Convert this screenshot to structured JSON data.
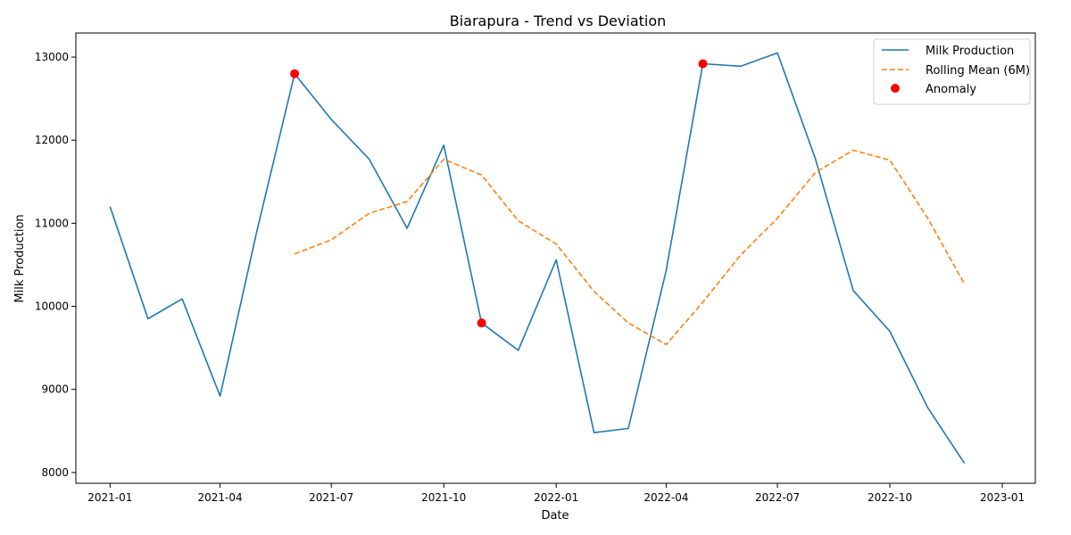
{
  "chart_data": {
    "type": "line",
    "title": "Biarapura - Trend vs Deviation",
    "xlabel": "Date",
    "ylabel": "Milk Production",
    "x": [
      "2021-01",
      "2021-02",
      "2021-03",
      "2021-04",
      "2021-05",
      "2021-06",
      "2021-07",
      "2021-08",
      "2021-09",
      "2021-10",
      "2021-11",
      "2021-12",
      "2022-01",
      "2022-02",
      "2022-03",
      "2022-04",
      "2022-05",
      "2022-06",
      "2022-07",
      "2022-08",
      "2022-09",
      "2022-10",
      "2022-11",
      "2022-12"
    ],
    "xlim": [
      "2020-12-04",
      "2023-01-28"
    ],
    "ylim": [
      7870,
      13290
    ],
    "x_ticks": [
      "2021-01",
      "2021-04",
      "2021-07",
      "2021-10",
      "2022-01",
      "2022-04",
      "2022-07",
      "2022-10",
      "2023-01"
    ],
    "y_ticks": [
      8000,
      9000,
      10000,
      11000,
      12000,
      13000
    ],
    "grid": false,
    "legend_position": "top-right",
    "series": [
      {
        "name": "Milk Production",
        "style": "solid",
        "color": "#1f77b4",
        "values": [
          11200,
          9850,
          10090,
          8920,
          10900,
          12800,
          12250,
          11770,
          10940,
          11940,
          9800,
          9470,
          10560,
          8480,
          8530,
          10430,
          12920,
          12890,
          13050,
          11780,
          10190,
          9700,
          8780,
          8110
        ]
      },
      {
        "name": "Rolling Mean (6M)",
        "style": "dashed",
        "color": "#ff7f0e",
        "values": [
          null,
          null,
          null,
          null,
          null,
          10630,
          10800,
          11120,
          11260,
          11770,
          11580,
          11030,
          10750,
          10180,
          9800,
          9540,
          10050,
          10620,
          11060,
          11610,
          11880,
          11760,
          11060,
          10270
        ]
      }
    ],
    "anomalies": {
      "name": "Anomaly",
      "color": "#ff0000",
      "points": [
        {
          "x": "2021-06",
          "y": 12800
        },
        {
          "x": "2021-11",
          "y": 9800
        },
        {
          "x": "2022-05",
          "y": 12920
        }
      ]
    }
  }
}
